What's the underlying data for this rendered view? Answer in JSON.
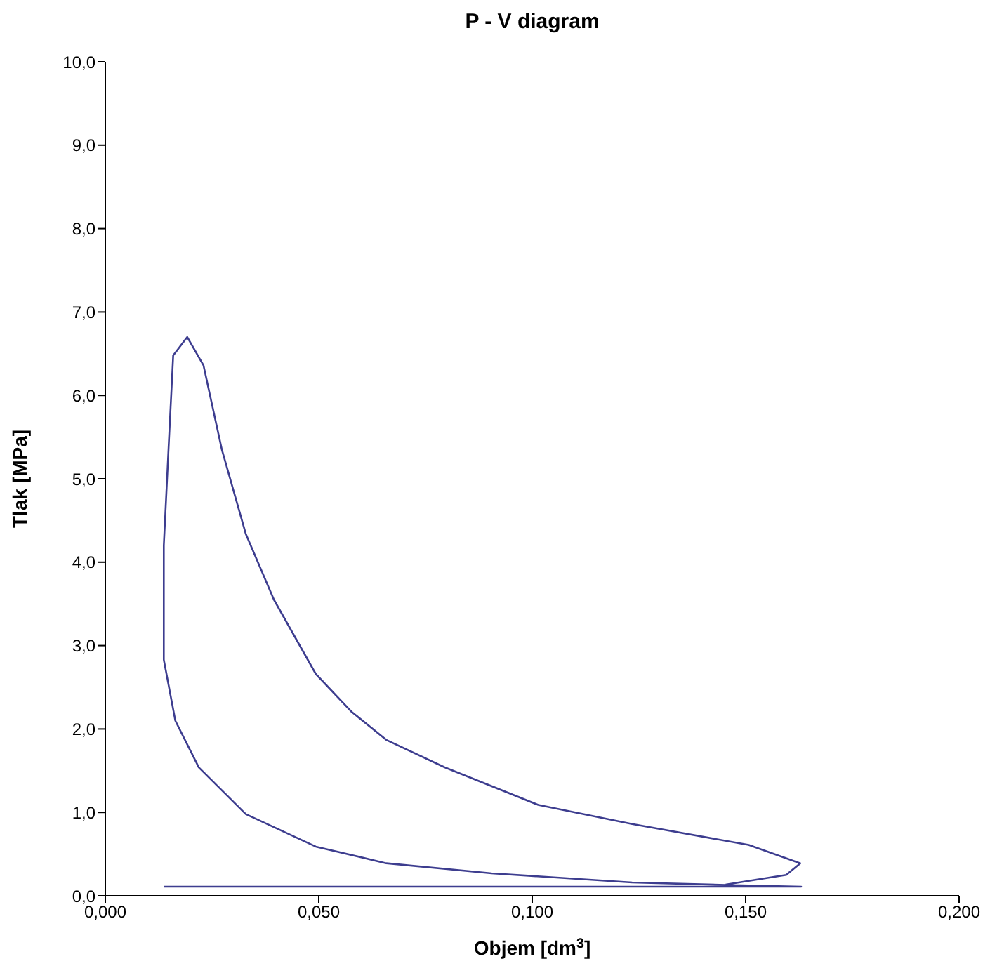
{
  "chart_data": {
    "type": "line",
    "title": "P - V diagram",
    "xlabel": "Objem [dm$^{3}$]",
    "ylabel": "Tlak [MPa]",
    "x": [
      0.0137,
      0.163,
      0.1453,
      0.1234,
      0.0905,
      0.0658,
      0.0493,
      0.0329,
      0.0219,
      0.0164,
      0.0137,
      0.0137,
      0.0148,
      0.0159,
      0.0192,
      0.023,
      0.0273,
      0.0329,
      0.0395,
      0.0493,
      0.0576,
      0.0658,
      0.0795,
      0.1014,
      0.1234,
      0.1507,
      0.1628,
      0.1595,
      0.1453
    ],
    "series": [
      {
        "color": "#3d3d8f",
        "values": [
          0.11,
          0.11,
          0.13,
          0.16,
          0.27,
          0.39,
          0.59,
          0.98,
          1.54,
          2.1,
          2.83,
          4.2,
          5.35,
          6.48,
          6.7,
          6.36,
          5.35,
          4.34,
          3.55,
          2.66,
          2.21,
          1.87,
          1.54,
          1.09,
          0.86,
          0.61,
          0.39,
          0.25,
          0.135
        ]
      }
    ],
    "xlim": [
      0,
      0.2
    ],
    "xticks": [
      {
        "value": 0,
        "label": "0,000"
      },
      {
        "value": 0.05,
        "label": "0,050"
      },
      {
        "value": 0.1,
        "label": "0,100"
      },
      {
        "value": 0.15,
        "label": "0,150"
      },
      {
        "value": 0.2,
        "label": "0,200"
      }
    ],
    "ylim": [
      0,
      10
    ],
    "yticks": [
      {
        "value": 0,
        "label": "0,0"
      },
      {
        "value": 1,
        "label": "1,0"
      },
      {
        "value": 2,
        "label": "2,0"
      },
      {
        "value": 3,
        "label": "3,0"
      },
      {
        "value": 4,
        "label": "4,0"
      },
      {
        "value": 5,
        "label": "5,0"
      },
      {
        "value": 6,
        "label": "6,0"
      },
      {
        "value": 7,
        "label": "7,0"
      },
      {
        "value": 8,
        "label": "8,0"
      },
      {
        "value": 9,
        "label": "9,0"
      },
      {
        "value": 10,
        "label": "10,0"
      }
    ],
    "grid": false,
    "legend": false,
    "marker": "none",
    "line_style": "solid"
  }
}
